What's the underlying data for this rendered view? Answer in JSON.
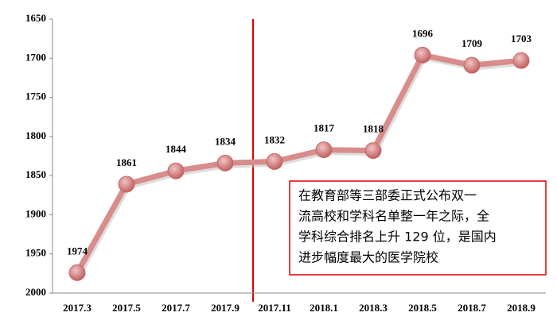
{
  "chart_data": {
    "type": "line",
    "categories": [
      "2017.3",
      "2017.5",
      "2017.7",
      "2017.9",
      "2017.11",
      "2018.1",
      "2018.3",
      "2018.5",
      "2018.7",
      "2018.9"
    ],
    "values": [
      1974,
      1861,
      1844,
      1834,
      1832,
      1817,
      1818,
      1696,
      1709,
      1703
    ],
    "color": "#d98c8c",
    "marker_color": "#c86a6a",
    "ylim": [
      1650,
      2000
    ],
    "yticks": [
      1650,
      1700,
      1750,
      1800,
      1850,
      1900,
      1950,
      2000
    ],
    "y_inverted": true,
    "grid": false,
    "annotation": [
      "在教育部等三部委正式公布双一",
      "流高校和学科名单整一年之际，全",
      "学科综合排名上升 129 位，是国内",
      "进步幅度最大的医学院校"
    ]
  }
}
